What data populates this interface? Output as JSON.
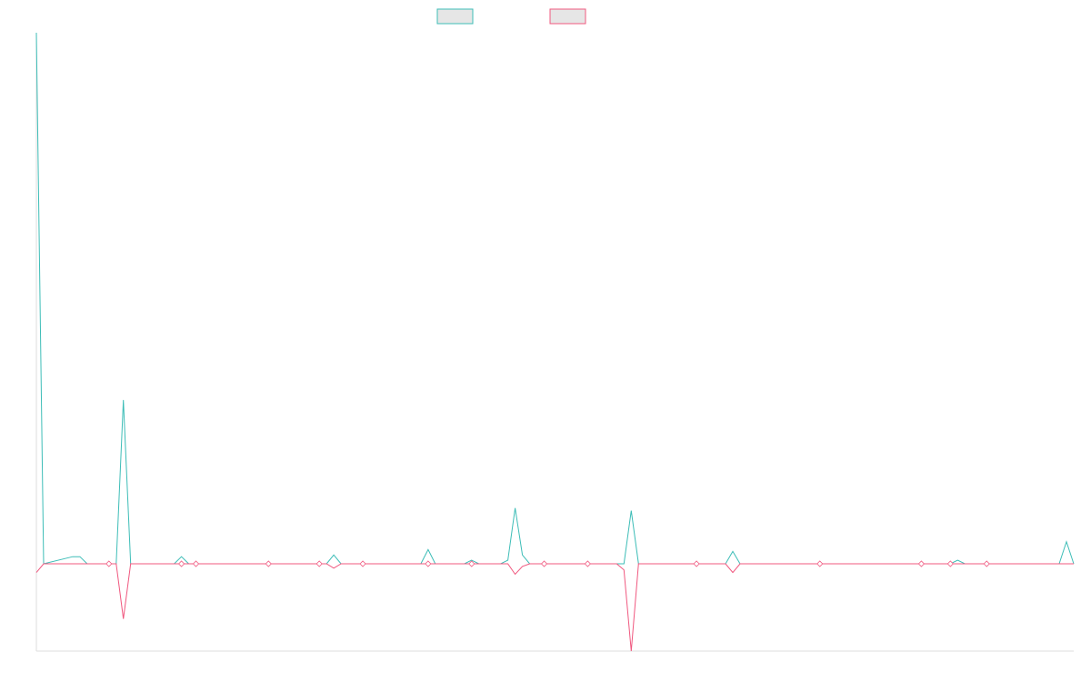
{
  "chart_data": {
    "type": "line",
    "title": "",
    "xlabel": "",
    "ylabel": "",
    "legend_position": "top-center",
    "grid": false,
    "x_count": 133,
    "ylim": [
      -100,
      600
    ],
    "colors": {
      "series_1": "#3dbdb7",
      "series_2": "#f0587f",
      "legend_fill": "#e6e6e6",
      "axis": "#dddddd"
    },
    "series": [
      {
        "legend_label": "",
        "color": "#3dbdb7",
        "points": [
          [
            0,
            600
          ],
          [
            1,
            0
          ],
          [
            5,
            8
          ],
          [
            6,
            8
          ],
          [
            7,
            0
          ],
          [
            10,
            0
          ],
          [
            11,
            0
          ],
          [
            12,
            185
          ],
          [
            13,
            0
          ],
          [
            19,
            0
          ],
          [
            20,
            8
          ],
          [
            21,
            0
          ],
          [
            22,
            0
          ],
          [
            23,
            0
          ],
          [
            32,
            0
          ],
          [
            33,
            0
          ],
          [
            39,
            0
          ],
          [
            40,
            0
          ],
          [
            41,
            10
          ],
          [
            42,
            0
          ],
          [
            45,
            0
          ],
          [
            46,
            0
          ],
          [
            52,
            0
          ],
          [
            53,
            0
          ],
          [
            54,
            16
          ],
          [
            55,
            0
          ],
          [
            59,
            0
          ],
          [
            60,
            4
          ],
          [
            61,
            0
          ],
          [
            64,
            0
          ],
          [
            65,
            4
          ],
          [
            66,
            63
          ],
          [
            67,
            10
          ],
          [
            68,
            0
          ],
          [
            70,
            0
          ],
          [
            71,
            0
          ],
          [
            75,
            0
          ],
          [
            76,
            0
          ],
          [
            80,
            0
          ],
          [
            81,
            0
          ],
          [
            82,
            60
          ],
          [
            83,
            0
          ],
          [
            91,
            0
          ],
          [
            92,
            0
          ],
          [
            95,
            0
          ],
          [
            96,
            14
          ],
          [
            97,
            0
          ],
          [
            108,
            0
          ],
          [
            109,
            0
          ],
          [
            122,
            0
          ],
          [
            123,
            0
          ],
          [
            126,
            0
          ],
          [
            127,
            4
          ],
          [
            128,
            0
          ],
          [
            131,
            0
          ],
          [
            132,
            0
          ],
          [
            138,
            0
          ],
          [
            139,
            0
          ],
          [
            140,
            0
          ],
          [
            141,
            0
          ],
          [
            142,
            25
          ],
          [
            143,
            0
          ]
        ]
      },
      {
        "legend_label": "",
        "color": "#f0587f",
        "points": [
          [
            0,
            -10
          ],
          [
            1,
            0
          ],
          [
            10,
            0
          ],
          [
            11,
            0
          ],
          [
            12,
            -63
          ],
          [
            13,
            0
          ],
          [
            19,
            0
          ],
          [
            20,
            0
          ],
          [
            21,
            0
          ],
          [
            22,
            0
          ],
          [
            23,
            0
          ],
          [
            32,
            0
          ],
          [
            33,
            0
          ],
          [
            39,
            0
          ],
          [
            40,
            0
          ],
          [
            41,
            -5
          ],
          [
            42,
            0
          ],
          [
            45,
            0
          ],
          [
            46,
            0
          ],
          [
            52,
            0
          ],
          [
            53,
            0
          ],
          [
            54,
            0
          ],
          [
            55,
            0
          ],
          [
            59,
            0
          ],
          [
            60,
            0
          ],
          [
            61,
            0
          ],
          [
            64,
            0
          ],
          [
            65,
            0
          ],
          [
            66,
            -12
          ],
          [
            67,
            -3
          ],
          [
            68,
            0
          ],
          [
            70,
            0
          ],
          [
            71,
            0
          ],
          [
            75,
            0
          ],
          [
            76,
            0
          ],
          [
            80,
            0
          ],
          [
            81,
            -7
          ],
          [
            82,
            -100
          ],
          [
            83,
            0
          ],
          [
            91,
            0
          ],
          [
            92,
            0
          ],
          [
            95,
            0
          ],
          [
            96,
            -10
          ],
          [
            97,
            0
          ],
          [
            108,
            0
          ],
          [
            109,
            0
          ],
          [
            122,
            0
          ],
          [
            123,
            0
          ],
          [
            126,
            0
          ],
          [
            127,
            0
          ],
          [
            128,
            0
          ],
          [
            131,
            0
          ],
          [
            132,
            0
          ],
          [
            138,
            0
          ],
          [
            139,
            0
          ],
          [
            140,
            0
          ],
          [
            141,
            0
          ],
          [
            142,
            0
          ],
          [
            143,
            0
          ]
        ]
      }
    ]
  }
}
